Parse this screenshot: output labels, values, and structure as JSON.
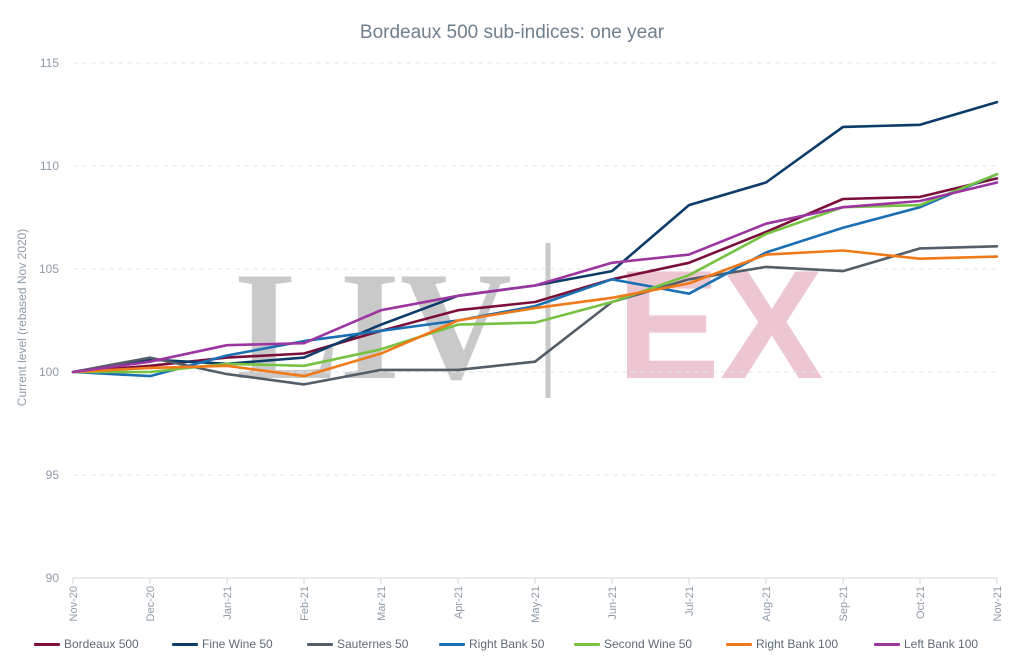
{
  "chart_data": {
    "type": "line",
    "title": "Bordeaux 500 sub-indices: one year",
    "xlabel": "",
    "ylabel": "Current level (rebased  Nov 2020)",
    "ylim": [
      90,
      115
    ],
    "yticks": [
      90,
      95,
      100,
      105,
      110,
      115
    ],
    "grid": "horizontal dashed",
    "legend": "bottom",
    "watermark": [
      "LIV",
      "EX"
    ],
    "categories": [
      "Nov-20",
      "Dec-20",
      "Jan-21",
      "Feb-21",
      "Mar-21",
      "Apr-21",
      "May-21",
      "Jun-21",
      "Jul-21",
      "Aug-21",
      "Sep-21",
      "Oct-21",
      "Nov-21"
    ],
    "series": [
      {
        "name": "Bordeaux 500",
        "color": "#7a0f3a",
        "values": [
          100,
          100.3,
          100.7,
          100.9,
          102.0,
          103.0,
          103.4,
          104.5,
          105.3,
          106.8,
          108.4,
          108.5,
          109.4
        ]
      },
      {
        "name": "Fine Wine 50",
        "color": "#0d3c68",
        "values": [
          100,
          100.6,
          100.4,
          100.7,
          102.3,
          103.7,
          104.2,
          104.9,
          108.1,
          109.2,
          111.9,
          112.0,
          113.1
        ]
      },
      {
        "name": "Sauternes 50",
        "color": "#545e68",
        "values": [
          100,
          100.7,
          99.9,
          99.4,
          100.1,
          100.1,
          100.5,
          103.4,
          104.5,
          105.1,
          104.9,
          106.0,
          106.1
        ]
      },
      {
        "name": "Right Bank 50",
        "color": "#1b6fb3",
        "values": [
          100,
          99.8,
          100.8,
          101.5,
          102.0,
          102.5,
          103.2,
          104.5,
          103.8,
          105.8,
          107.0,
          108.0,
          109.6
        ]
      },
      {
        "name": "Second Wine 50",
        "color": "#77c242",
        "values": [
          100,
          100.0,
          100.4,
          100.3,
          101.1,
          102.3,
          102.4,
          103.4,
          104.7,
          106.7,
          108.0,
          108.1,
          109.6
        ]
      },
      {
        "name": "Right Bank 100",
        "color": "#f07a1a",
        "values": [
          100,
          100.2,
          100.3,
          99.8,
          100.9,
          102.5,
          103.1,
          103.6,
          104.3,
          105.7,
          105.9,
          105.5,
          105.6
        ]
      },
      {
        "name": "Left Bank 100",
        "color": "#9b35a0",
        "values": [
          100,
          100.5,
          101.3,
          101.4,
          103.0,
          103.7,
          104.2,
          105.3,
          105.7,
          107.2,
          108.0,
          108.3,
          109.2
        ]
      }
    ]
  }
}
